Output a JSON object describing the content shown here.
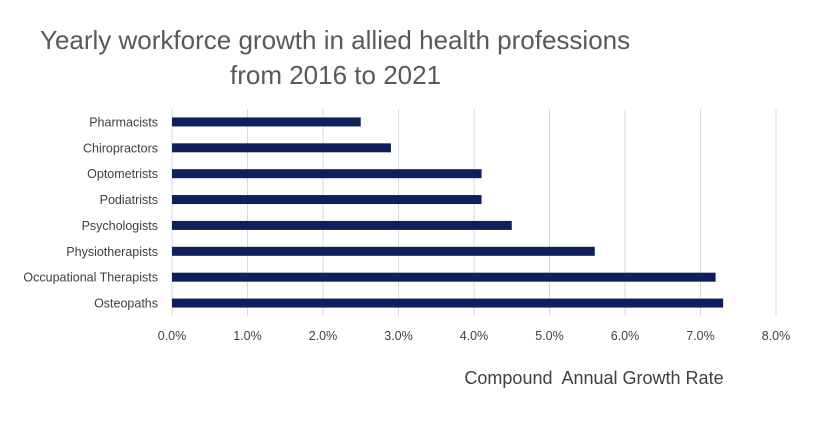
{
  "chart_data": {
    "type": "bar",
    "orientation": "horizontal",
    "title_lines": [
      "Yearly workforce growth in allied health professions",
      "from 2016 to 2021"
    ],
    "categories": [
      "Pharmacists",
      "Chiropractors",
      "Optometrists",
      "Podiatrists",
      "Psychologists",
      "Physiotherapists",
      "Occupational Therapists",
      "Osteopaths"
    ],
    "values": [
      2.5,
      2.9,
      4.1,
      4.1,
      4.5,
      5.6,
      7.2,
      7.3
    ],
    "xlabel": "Compound  Annual Growth Rate",
    "ylabel": "",
    "xlim": [
      0,
      8
    ],
    "xticks": [
      "0.0%",
      "1.0%",
      "2.0%",
      "3.0%",
      "4.0%",
      "5.0%",
      "6.0%",
      "7.0%",
      "8.0%"
    ],
    "grid": "vertical",
    "legend": "none",
    "colors": {
      "bar": "#0d1f5c",
      "grid": "#d9d9d9"
    }
  }
}
